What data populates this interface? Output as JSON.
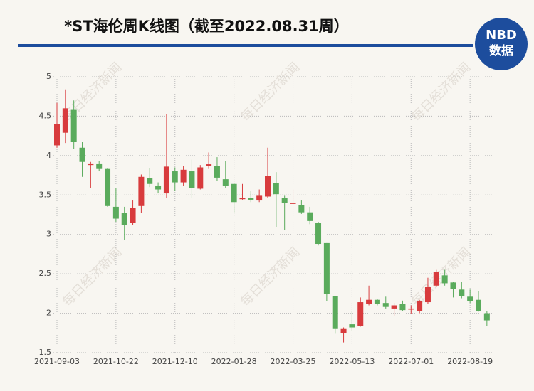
{
  "chart_data": {
    "type": "candlestick",
    "title": "*ST海伦周K线图（截至2022.08.31周）",
    "logo": "NBD",
    "logo_subtitle": "数据",
    "watermark": "每日经济新闻",
    "categories": [
      "2021-09-03",
      null,
      null,
      null,
      null,
      null,
      null,
      "2021-10-22",
      null,
      null,
      null,
      null,
      null,
      null,
      "2021-12-10",
      null,
      null,
      null,
      null,
      null,
      null,
      "2022-01-28",
      null,
      null,
      null,
      null,
      null,
      null,
      "2022-03-25",
      null,
      null,
      null,
      null,
      null,
      null,
      "2022-05-13",
      null,
      null,
      null,
      null,
      null,
      null,
      "2022-07-01",
      null,
      null,
      null,
      null,
      null,
      null,
      "2022-08-19",
      null,
      null
    ],
    "open": [
      4.13,
      4.29,
      4.58,
      4.1,
      3.88,
      3.9,
      3.83,
      3.35,
      3.27,
      3.15,
      3.36,
      3.71,
      3.62,
      3.52,
      3.8,
      3.66,
      3.8,
      3.58,
      3.87,
      3.87,
      3.7,
      3.64,
      3.45,
      3.46,
      3.43,
      3.48,
      3.65,
      3.46,
      3.39,
      3.37,
      3.28,
      3.15,
      2.89,
      2.22,
      1.75,
      1.86,
      1.84,
      2.12,
      2.17,
      2.13,
      2.06,
      2.12,
      2.05,
      2.03,
      2.14,
      2.35,
      2.48,
      2.39,
      2.3,
      2.21,
      2.17,
      2.0
    ],
    "high": [
      4.67,
      4.84,
      4.7,
      4.17,
      3.92,
      3.93,
      3.84,
      3.59,
      3.35,
      3.43,
      3.76,
      3.84,
      3.66,
      4.53,
      3.85,
      3.87,
      3.95,
      3.88,
      4.04,
      3.98,
      3.93,
      3.65,
      3.64,
      3.55,
      3.57,
      4.1,
      3.79,
      3.49,
      3.57,
      3.43,
      3.35,
      3.16,
      2.89,
      2.22,
      1.82,
      2.02,
      2.2,
      2.35,
      2.18,
      2.21,
      2.13,
      2.16,
      2.1,
      2.17,
      2.45,
      2.55,
      2.55,
      2.4,
      2.4,
      2.3,
      2.28,
      2.03
    ],
    "low": [
      4.1,
      4.16,
      4.08,
      3.73,
      3.59,
      3.8,
      3.35,
      3.16,
      2.93,
      3.12,
      3.27,
      3.6,
      3.52,
      3.46,
      3.55,
      3.62,
      3.46,
      3.57,
      3.83,
      3.68,
      3.59,
      3.28,
      3.44,
      3.41,
      3.41,
      3.46,
      3.09,
      3.06,
      3.38,
      3.26,
      3.13,
      2.86,
      2.15,
      1.74,
      1.63,
      1.78,
      1.83,
      2.1,
      2.1,
      2.06,
      1.97,
      2.03,
      1.99,
      2.0,
      2.12,
      2.33,
      2.35,
      2.2,
      2.19,
      2.13,
      2.02,
      1.84
    ],
    "close": [
      4.4,
      4.6,
      4.17,
      3.92,
      3.9,
      3.83,
      3.36,
      3.2,
      3.12,
      3.34,
      3.73,
      3.64,
      3.57,
      3.86,
      3.66,
      3.82,
      3.59,
      3.85,
      3.89,
      3.72,
      3.62,
      3.41,
      3.46,
      3.44,
      3.49,
      3.74,
      3.51,
      3.4,
      3.4,
      3.28,
      3.17,
      2.88,
      2.24,
      1.8,
      1.8,
      1.82,
      2.14,
      2.17,
      2.12,
      2.08,
      2.1,
      2.04,
      2.06,
      2.15,
      2.33,
      2.52,
      2.38,
      2.31,
      2.22,
      2.15,
      2.03,
      1.91
    ],
    "up_color": "#d83b3d",
    "down_color": "#5aab5c",
    "ylim": [
      1.5,
      5
    ],
    "yticks": [
      1.5,
      2,
      2.5,
      3,
      3.5,
      4,
      4.5,
      5
    ],
    "grid": true
  }
}
